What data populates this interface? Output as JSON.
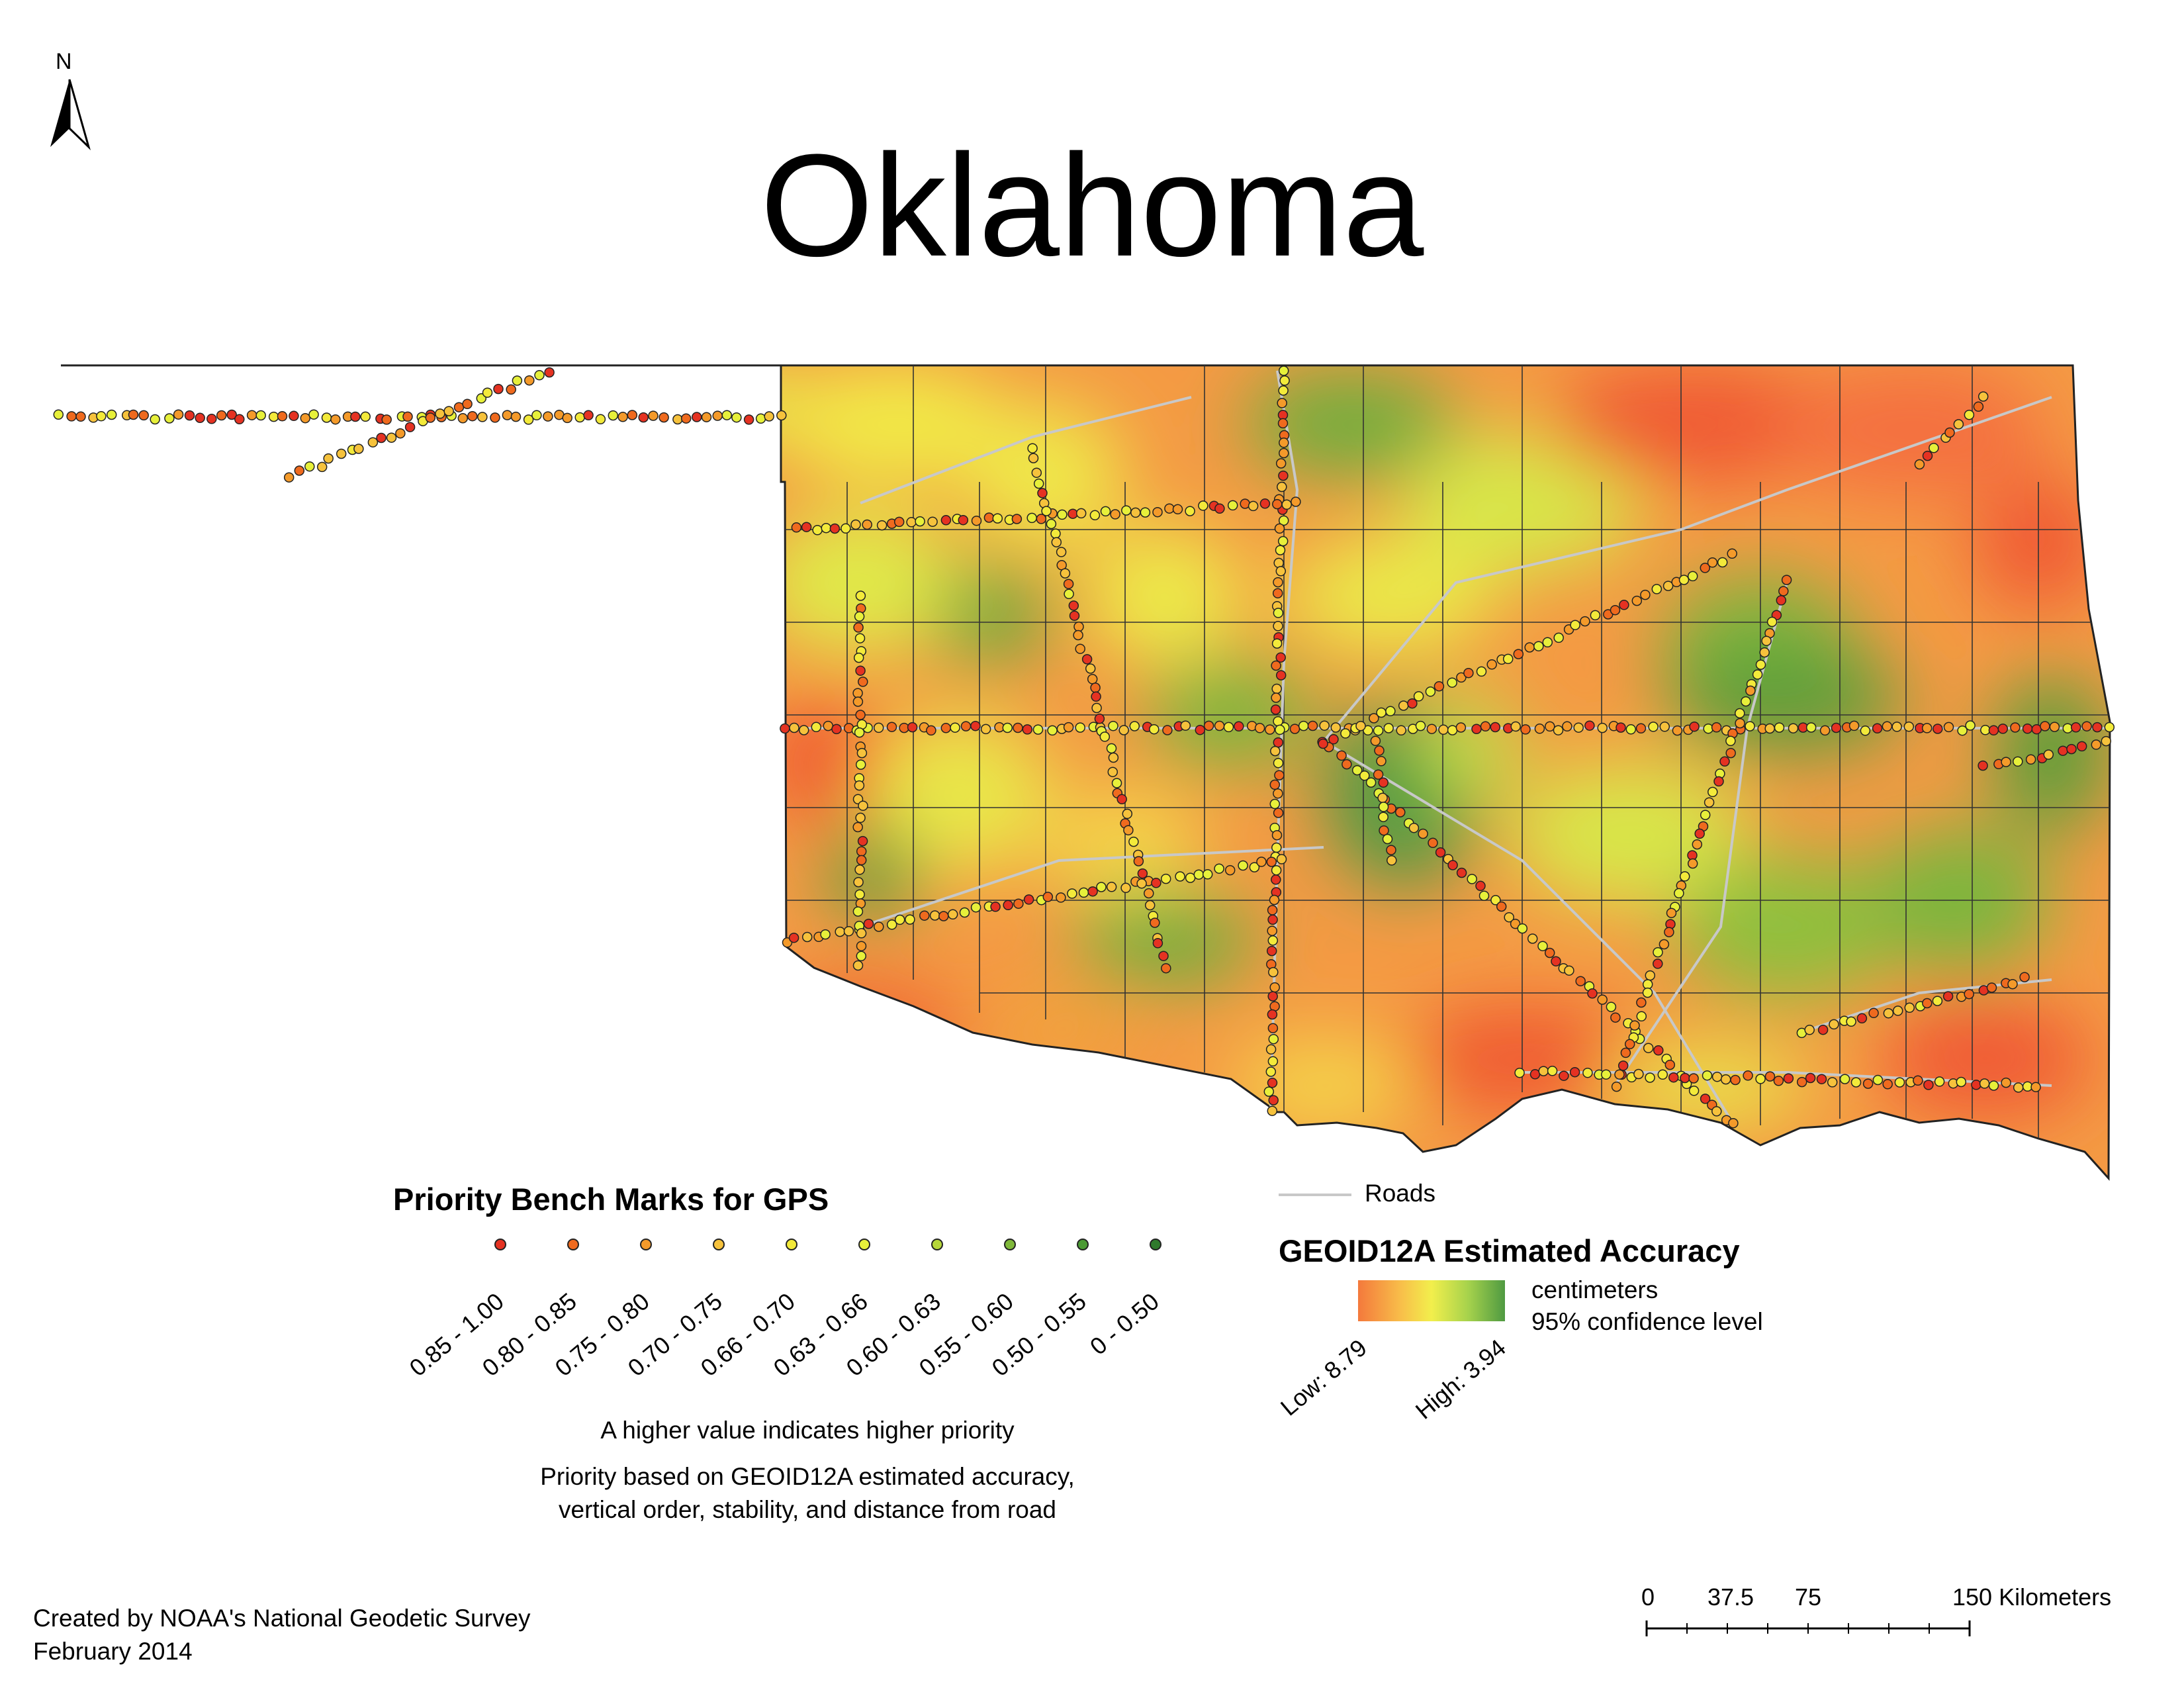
{
  "map": {
    "title": "Oklahoma",
    "north_arrow_label": "N"
  },
  "priority_legend": {
    "heading": "Priority Bench Marks for GPS",
    "classes": [
      {
        "label": "0.85 - 1.00",
        "color": "#e53222"
      },
      {
        "label": "0.80 - 0.85",
        "color": "#ef6a1e"
      },
      {
        "label": "0.75 - 0.80",
        "color": "#f49a2a"
      },
      {
        "label": "0.70 - 0.75",
        "color": "#f6c23c"
      },
      {
        "label": "0.66 - 0.70",
        "color": "#f3ea3a"
      },
      {
        "label": "0.63 - 0.66",
        "color": "#e7f03a"
      },
      {
        "label": "0.60 - 0.63",
        "color": "#b6d63a"
      },
      {
        "label": "0.55 - 0.60",
        "color": "#7fb83a"
      },
      {
        "label": "0.50 - 0.55",
        "color": "#4b9a34"
      },
      {
        "label": "0 - 0.50",
        "color": "#2f7a2c"
      }
    ],
    "note": "A higher value indicates higher priority",
    "basis_line1": "Priority based on GEOID12A estimated accuracy,",
    "basis_line2": "vertical order, stability, and distance from road"
  },
  "roads_legend": {
    "label": "Roads",
    "color": "#c8c8c8"
  },
  "accuracy_legend": {
    "heading": "GEOID12A Estimated Accuracy",
    "unit_line1": "centimeters",
    "unit_line2": "95% confidence level",
    "low_label": "Low: 8.79",
    "high_label": "High: 3.94",
    "ramp_colors": [
      "#f4793c",
      "#f8c04a",
      "#f2ef4c",
      "#a6d24c",
      "#4f9a42"
    ]
  },
  "scale_bar": {
    "labels": [
      "0",
      "37.5",
      "75",
      "150 Kilometers"
    ]
  },
  "credits": {
    "line1": "Created by NOAA's National Geodetic Survey",
    "line2": "February 2014"
  }
}
